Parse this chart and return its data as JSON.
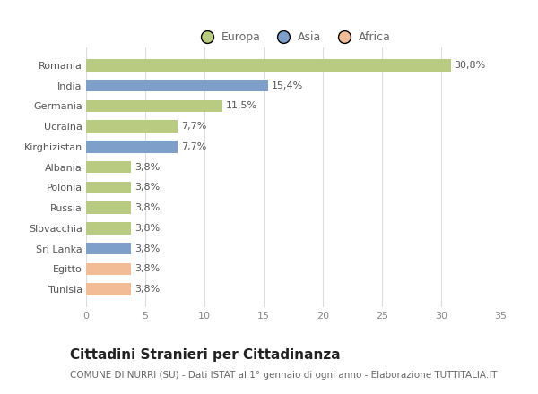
{
  "categories": [
    "Tunisia",
    "Egitto",
    "Sri Lanka",
    "Slovacchia",
    "Russia",
    "Polonia",
    "Albania",
    "Kirghizistan",
    "Ucraina",
    "Germania",
    "India",
    "Romania"
  ],
  "values": [
    3.8,
    3.8,
    3.8,
    3.8,
    3.8,
    3.8,
    3.8,
    7.7,
    7.7,
    11.5,
    15.4,
    30.8
  ],
  "colors": [
    "#f2bc96",
    "#f2bc96",
    "#7e9fc9",
    "#b8cb80",
    "#b8cb80",
    "#b8cb80",
    "#b8cb80",
    "#7e9fc9",
    "#b8cb80",
    "#b8cb80",
    "#7e9fc9",
    "#b8cb80"
  ],
  "labels": [
    "3,8%",
    "3,8%",
    "3,8%",
    "3,8%",
    "3,8%",
    "3,8%",
    "3,8%",
    "7,7%",
    "7,7%",
    "11,5%",
    "15,4%",
    "30,8%"
  ],
  "legend_labels": [
    "Europa",
    "Asia",
    "Africa"
  ],
  "legend_colors": [
    "#b8cb80",
    "#7e9fc9",
    "#f2bc96"
  ],
  "title": "Cittadini Stranieri per Cittadinanza",
  "subtitle": "COMUNE DI NURRI (SU) - Dati ISTAT al 1° gennaio di ogni anno - Elaborazione TUTTITALIA.IT",
  "xlim": [
    0,
    35
  ],
  "xticks": [
    0,
    5,
    10,
    15,
    20,
    25,
    30,
    35
  ],
  "bg_color": "#ffffff",
  "grid_color": "#dddddd",
  "title_fontsize": 11,
  "subtitle_fontsize": 7.5,
  "label_fontsize": 8,
  "tick_fontsize": 8,
  "legend_fontsize": 9
}
